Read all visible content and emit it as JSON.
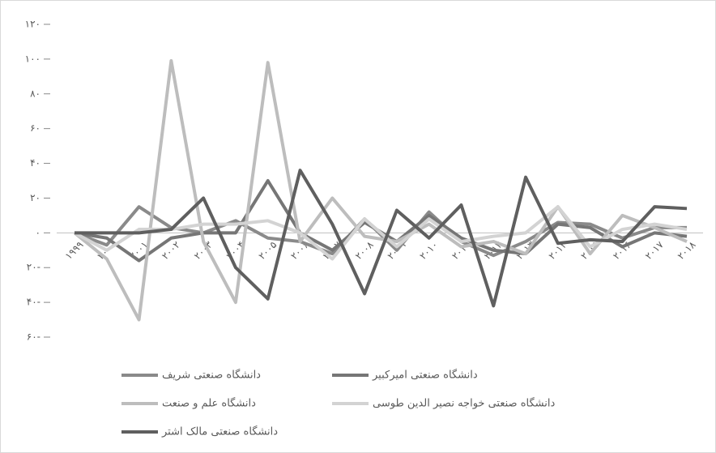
{
  "chart_data": {
    "type": "line",
    "categories": [
      "۱۹۹۹",
      "۲۰۰۰",
      "۲۰۰۱",
      "۲۰۰۲",
      "۲۰۰۳",
      "۲۰۰۴",
      "۲۰۰۵",
      "۲۰۰۶",
      "۲۰۰۷",
      "۲۰۰۸",
      "۲۰۰۹",
      "۲۰۱۰",
      "۲۰۱۱",
      "۲۰۱۲",
      "۲۰۱۳",
      "۲۰۱۴",
      "۲۰۱۵",
      "۲۰۱۶",
      "۲۰۱۷",
      "۲۰۱۸"
    ],
    "ylim": [
      -60,
      120
    ],
    "yticks": [
      {
        "value": 120,
        "label": "۱۲۰"
      },
      {
        "value": 100,
        "label": "۱۰۰"
      },
      {
        "value": 80,
        "label": "۸۰"
      },
      {
        "value": 60,
        "label": "۶۰"
      },
      {
        "value": 40,
        "label": "۴۰"
      },
      {
        "value": 20,
        "label": "۲۰"
      },
      {
        "value": 0,
        "label": "۰"
      },
      {
        "value": -20,
        "label": "۲۰-"
      },
      {
        "value": -40,
        "label": "۴۰-"
      },
      {
        "value": -60,
        "label": "۶۰-"
      }
    ],
    "series": [
      {
        "name": "دانشگاه صنعتی شریف",
        "color": "#8a8a8a",
        "values": [
          0,
          -7,
          15,
          3,
          0,
          7,
          -3,
          -5,
          -12,
          8,
          -10,
          12,
          -5,
          -13,
          -5,
          6,
          5,
          -3,
          3,
          3
        ]
      },
      {
        "name": "دانشگاه صنعتی امیرکبیر",
        "color": "#767676",
        "values": [
          0,
          -3,
          -16,
          -3,
          0,
          0,
          30,
          0,
          -10,
          6,
          -5,
          10,
          -3,
          -10,
          -12,
          5,
          3,
          -8,
          0,
          -2
        ]
      },
      {
        "name": "دانشگاه علم و صنعت",
        "color": "#bdbdbd",
        "values": [
          0,
          -15,
          -50,
          99,
          -5,
          -40,
          98,
          -5,
          20,
          -2,
          -5,
          5,
          -8,
          -5,
          -12,
          15,
          -12,
          10,
          3,
          -5
        ]
      },
      {
        "name": "دانشگاه صنعتی خواجه نصیر الدین طوسی",
        "color": "#d3d3d3",
        "values": [
          0,
          -10,
          2,
          2,
          5,
          5,
          7,
          0,
          -15,
          8,
          -8,
          8,
          -5,
          -2,
          0,
          15,
          -8,
          2,
          5,
          2
        ]
      },
      {
        "name": "دانشگاه صنعتی مالک اشتر",
        "color": "#5f5f5f",
        "values": [
          0,
          0,
          0,
          2,
          20,
          -20,
          -38,
          36,
          5,
          -35,
          13,
          -3,
          16,
          -42,
          32,
          -6,
          -4,
          -5,
          15,
          14
        ]
      }
    ]
  }
}
